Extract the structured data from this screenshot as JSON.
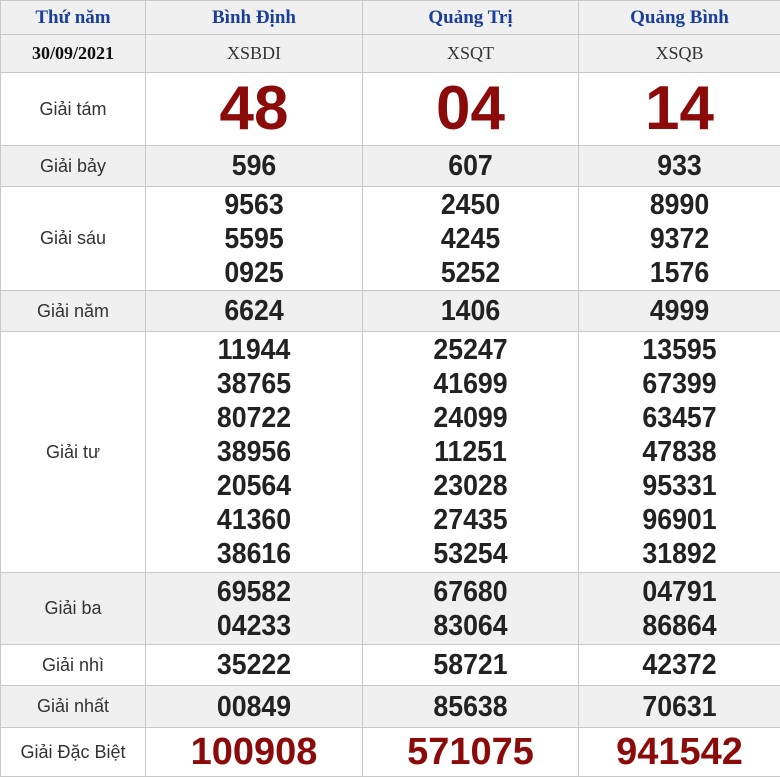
{
  "header": {
    "day": "Thứ năm",
    "provinces": [
      "Bình Định",
      "Quảng Trị",
      "Quảng Bình"
    ]
  },
  "date_row": {
    "date": "30/09/2021",
    "codes": [
      "XSBDI",
      "XSQT",
      "XSQB"
    ]
  },
  "colors": {
    "header_text": "#1a3f9a",
    "highlight": "#8b0a0a",
    "alt_row": "#f0f0f0"
  },
  "prizes": [
    {
      "label": "Giải tám",
      "style": "big",
      "values": [
        [
          "48"
        ],
        [
          "04"
        ],
        [
          "14"
        ]
      ]
    },
    {
      "label": "Giải bảy",
      "style": "num",
      "values": [
        [
          "596"
        ],
        [
          "607"
        ],
        [
          "933"
        ]
      ]
    },
    {
      "label": "Giải sáu",
      "style": "num",
      "values": [
        [
          "9563",
          "5595",
          "0925"
        ],
        [
          "2450",
          "4245",
          "5252"
        ],
        [
          "8990",
          "9372",
          "1576"
        ]
      ]
    },
    {
      "label": "Giải năm",
      "style": "num",
      "values": [
        [
          "6624"
        ],
        [
          "1406"
        ],
        [
          "4999"
        ]
      ]
    },
    {
      "label": "Giải tư",
      "style": "num",
      "values": [
        [
          "11944",
          "38765",
          "80722",
          "38956",
          "20564",
          "41360",
          "38616"
        ],
        [
          "25247",
          "41699",
          "24099",
          "11251",
          "23028",
          "27435",
          "53254"
        ],
        [
          "13595",
          "67399",
          "63457",
          "47838",
          "95331",
          "96901",
          "31892"
        ]
      ]
    },
    {
      "label": "Giải ba",
      "style": "num",
      "values": [
        [
          "69582",
          "04233"
        ],
        [
          "67680",
          "83064"
        ],
        [
          "04791",
          "86864"
        ]
      ]
    },
    {
      "label": "Giải nhì",
      "style": "num",
      "values": [
        [
          "35222"
        ],
        [
          "58721"
        ],
        [
          "42372"
        ]
      ]
    },
    {
      "label": "Giải nhất",
      "style": "num",
      "values": [
        [
          "00849"
        ],
        [
          "85638"
        ],
        [
          "70631"
        ]
      ]
    },
    {
      "label": "Giải Đặc Biệt",
      "style": "db",
      "values": [
        [
          "100908"
        ],
        [
          "571075"
        ],
        [
          "941542"
        ]
      ]
    }
  ]
}
